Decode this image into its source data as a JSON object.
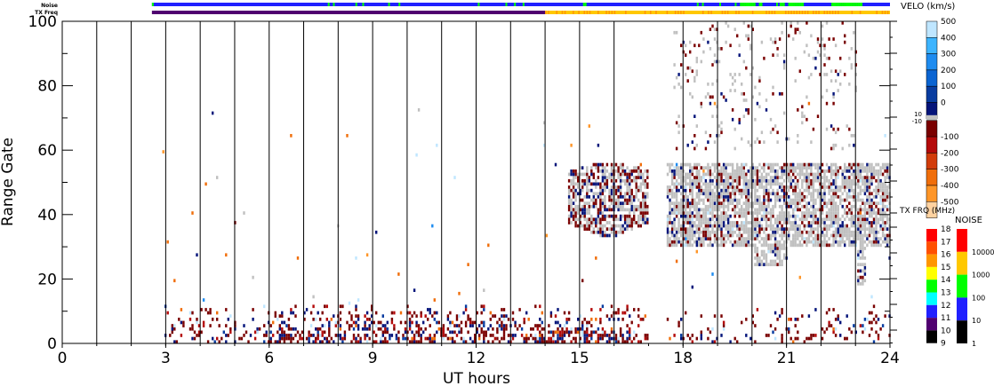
{
  "chart_data": {
    "type": "heatmap",
    "title": "",
    "xlabel": "UT hours",
    "ylabel": "Range Gate",
    "xlim": [
      0,
      24
    ],
    "ylim": [
      0,
      100
    ],
    "xticks": [
      "0",
      "3",
      "6",
      "9",
      "12",
      "15",
      "18",
      "21",
      "24"
    ],
    "yticks": [
      "0",
      "20",
      "40",
      "60",
      "80",
      "100"
    ],
    "data_gap_hours": [
      17.0,
      17.5
    ],
    "top_bars": {
      "noise_label": "Noise",
      "txfreq_label": "TX Freq",
      "start_hour": 2.6,
      "txfreq_change_hour": 14.0
    },
    "velocity_colorbar": {
      "title": "VELO (km/s)",
      "ticks": [
        "500",
        "400",
        "300",
        "200",
        "100",
        "0",
        "-100",
        "-200",
        "-300",
        "-400",
        "-500"
      ],
      "ground_scatter_labels": [
        "10",
        "-10"
      ],
      "colors_positive": [
        "#bfe6ff",
        "#3cb4ff",
        "#1e8cf0",
        "#0a64d2",
        "#083ca0",
        "#04147a"
      ],
      "colors_negative": [
        "#7a0000",
        "#b40a0a",
        "#d23c0a",
        "#f06e0a",
        "#ff9628",
        "#ffd2a0"
      ],
      "ground_scatter_color": "#c0c0c0"
    },
    "txfreq_colorbar": {
      "title": "TX FRQ (MHz)",
      "ticks": [
        "18",
        "17",
        "16",
        "15",
        "14",
        "13",
        "12",
        "11",
        "10",
        "9"
      ],
      "colors": [
        "#ff0000",
        "#ff5000",
        "#ff9600",
        "#ffff00",
        "#00ff00",
        "#00ffff",
        "#2020ff",
        "#500070",
        "#000000"
      ]
    },
    "noise_colorbar": {
      "title": "NOISE",
      "ticks": [
        "10000",
        "1000",
        "100",
        "10",
        "1"
      ],
      "colors": [
        "#ff0000",
        "#ffc800",
        "#00ff00",
        "#2020ff",
        "#000000"
      ]
    }
  }
}
